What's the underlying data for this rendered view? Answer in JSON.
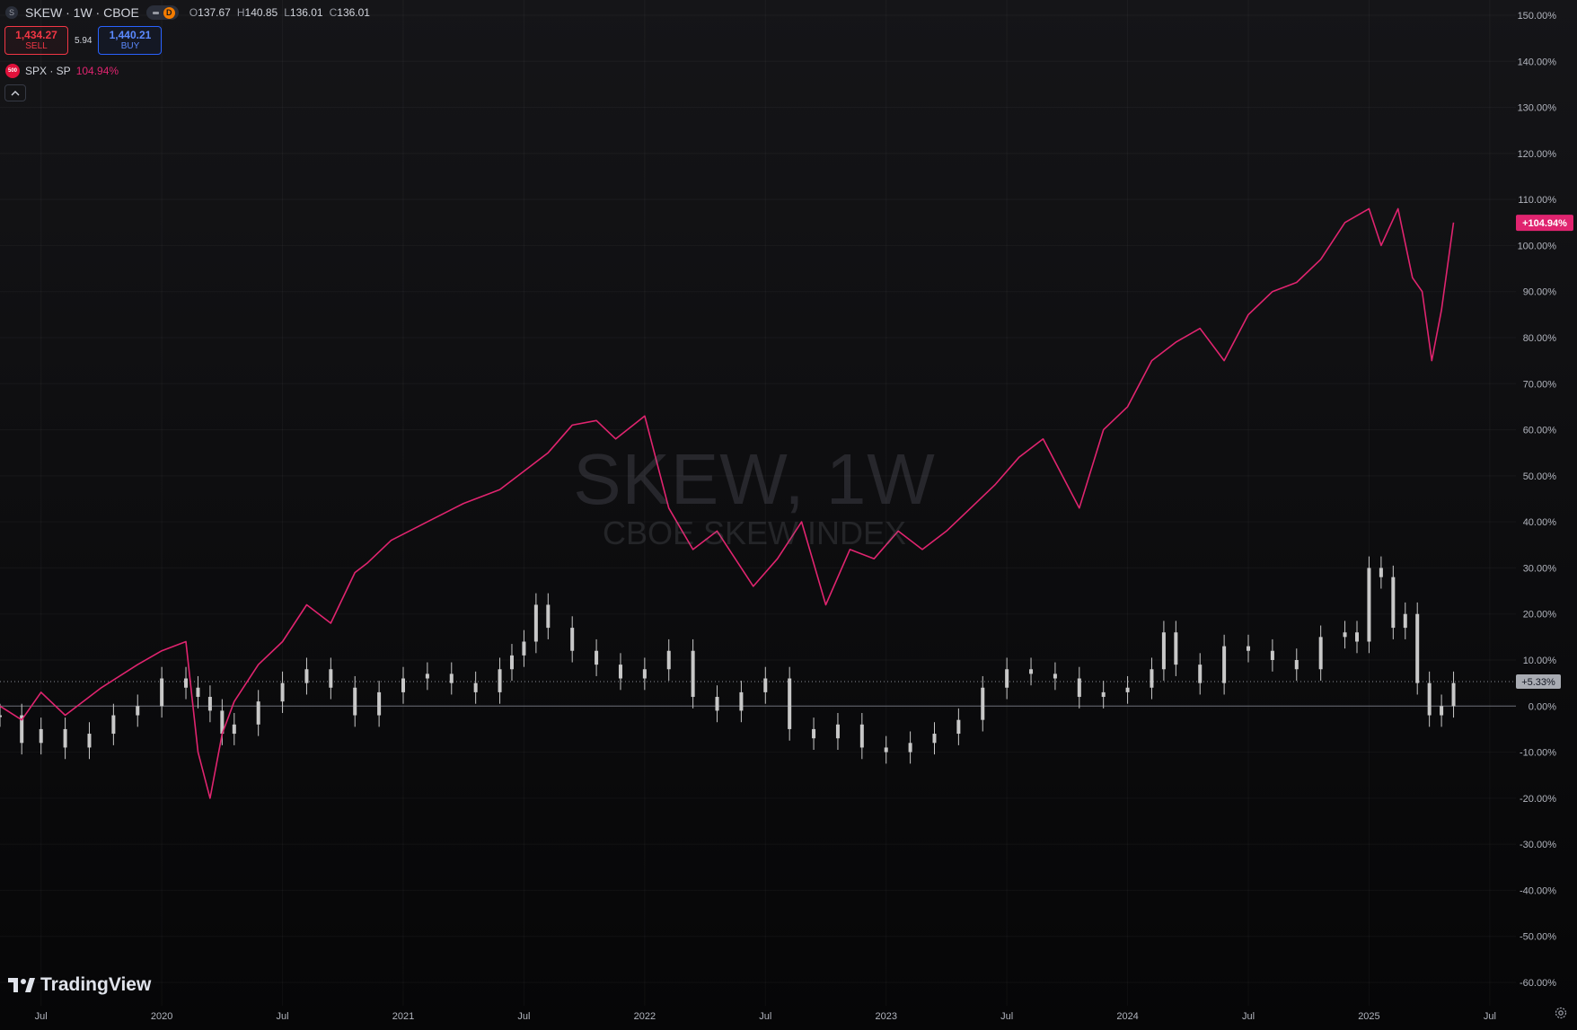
{
  "header": {
    "symbol_logo": "S",
    "title": "SKEW · 1W · CBOE",
    "toggle_badge": "D",
    "ohlc": {
      "open": "137.67",
      "high": "140.85",
      "low": "136.01",
      "close": "136.01"
    },
    "ohlc_labels": {
      "open": "O",
      "high": "H",
      "low": "L",
      "close": "C"
    }
  },
  "trade": {
    "sell_price": "1,434.27",
    "sell_label": "SELL",
    "spread": "5.94",
    "buy_price": "1,440.21",
    "buy_label": "BUY"
  },
  "compare": {
    "logo_text": "500",
    "label": "SPX · SP",
    "value": "104.94%",
    "color": "#e0246f"
  },
  "watermark": {
    "title": "SKEW, 1W",
    "subtitle": "CBOE SKEW INDEX"
  },
  "branding": {
    "name": "TradingView"
  },
  "icons": {
    "collapse": "chevron-up-icon",
    "settings": "gear-icon",
    "logo": "tradingview-logo-icon"
  },
  "colors": {
    "spx_line": "#e0246f",
    "candle_body": "#c8c8c8",
    "background": "#0e0e10",
    "axis_text": "#b2b5be"
  },
  "chart_data": {
    "type": "line",
    "y_axis": {
      "unit": "%",
      "range": [
        -62,
        154
      ],
      "ticks": [
        "150.00%",
        "140.00%",
        "130.00%",
        "120.00%",
        "110.00%",
        "100.00%",
        "90.00%",
        "80.00%",
        "70.00%",
        "60.00%",
        "50.00%",
        "40.00%",
        "30.00%",
        "20.00%",
        "10.00%",
        "0.00%",
        "-10.00%",
        "-20.00%",
        "-30.00%",
        "-40.00%",
        "-50.00%",
        "-60.00%"
      ],
      "tick_values": [
        150,
        140,
        130,
        120,
        110,
        100,
        90,
        80,
        70,
        60,
        50,
        40,
        30,
        20,
        10,
        0,
        -10,
        -20,
        -30,
        -40,
        -50,
        -60
      ]
    },
    "x_axis": {
      "range": [
        2019.33,
        2025.56
      ],
      "ticks": [
        {
          "label": "Jul",
          "t": 2019.5
        },
        {
          "label": "2020",
          "t": 2020.0
        },
        {
          "label": "Jul",
          "t": 2020.5
        },
        {
          "label": "2021",
          "t": 2021.0
        },
        {
          "label": "Jul",
          "t": 2021.5
        },
        {
          "label": "2022",
          "t": 2022.0
        },
        {
          "label": "Jul",
          "t": 2022.5
        },
        {
          "label": "2023",
          "t": 2023.0
        },
        {
          "label": "Jul",
          "t": 2023.5
        },
        {
          "label": "2024",
          "t": 2024.0
        },
        {
          "label": "Jul",
          "t": 2024.5
        },
        {
          "label": "2025",
          "t": 2025.0
        },
        {
          "label": "Jul",
          "t": 2025.5
        }
      ]
    },
    "series": [
      {
        "name": "SPX · SP",
        "type": "line",
        "color": "#e0246f",
        "last_label": "+104.94%",
        "t": [
          2019.33,
          2019.42,
          2019.5,
          2019.6,
          2019.75,
          2019.9,
          2020.0,
          2020.1,
          2020.15,
          2020.2,
          2020.25,
          2020.3,
          2020.4,
          2020.5,
          2020.6,
          2020.7,
          2020.8,
          2020.85,
          2020.95,
          2021.1,
          2021.25,
          2021.4,
          2021.5,
          2021.6,
          2021.7,
          2021.8,
          2021.88,
          2022.0,
          2022.1,
          2022.2,
          2022.3,
          2022.45,
          2022.55,
          2022.65,
          2022.75,
          2022.85,
          2022.95,
          2023.05,
          2023.15,
          2023.25,
          2023.35,
          2023.45,
          2023.55,
          2023.65,
          2023.8,
          2023.9,
          2024.0,
          2024.1,
          2024.2,
          2024.3,
          2024.4,
          2024.5,
          2024.6,
          2024.7,
          2024.8,
          2024.9,
          2025.0,
          2025.05,
          2025.12,
          2025.18,
          2025.22,
          2025.26,
          2025.3,
          2025.35
        ],
        "values": [
          0,
          -3,
          3,
          -2,
          4,
          9,
          12,
          14,
          -10,
          -20,
          -6,
          1,
          9,
          14,
          22,
          18,
          29,
          31,
          36,
          40,
          44,
          47,
          51,
          55,
          61,
          62,
          58,
          63,
          43,
          34,
          38,
          26,
          32,
          40,
          22,
          34,
          32,
          38,
          34,
          38,
          43,
          48,
          54,
          58,
          43,
          60,
          65,
          75,
          79,
          82,
          75,
          85,
          90,
          92,
          97,
          105,
          108,
          100,
          108,
          93,
          90,
          75,
          86,
          105
        ]
      },
      {
        "name": "SKEW",
        "type": "candlestick",
        "color": "#c8c8c8",
        "last_label": "+5.33%",
        "t": [
          2019.33,
          2019.42,
          2019.5,
          2019.6,
          2019.7,
          2019.8,
          2019.9,
          2020.0,
          2020.1,
          2020.15,
          2020.2,
          2020.25,
          2020.3,
          2020.4,
          2020.5,
          2020.6,
          2020.7,
          2020.8,
          2020.9,
          2021.0,
          2021.1,
          2021.2,
          2021.3,
          2021.4,
          2021.45,
          2021.5,
          2021.55,
          2021.6,
          2021.7,
          2021.8,
          2021.9,
          2022.0,
          2022.1,
          2022.2,
          2022.3,
          2022.4,
          2022.5,
          2022.6,
          2022.7,
          2022.8,
          2022.9,
          2023.0,
          2023.1,
          2023.2,
          2023.3,
          2023.4,
          2023.5,
          2023.6,
          2023.7,
          2023.8,
          2023.9,
          2024.0,
          2024.1,
          2024.15,
          2024.2,
          2024.3,
          2024.4,
          2024.5,
          2024.6,
          2024.7,
          2024.8,
          2024.9,
          2024.95,
          2025.0,
          2025.05,
          2025.1,
          2025.15,
          2025.2,
          2025.25,
          2025.3,
          2025.35
        ],
        "values": [
          -2,
          -8,
          -5,
          -9,
          -6,
          -2,
          0,
          6,
          4,
          2,
          -1,
          -6,
          -4,
          1,
          5,
          8,
          4,
          -2,
          3,
          6,
          7,
          5,
          3,
          8,
          11,
          14,
          22,
          17,
          12,
          9,
          6,
          8,
          12,
          2,
          -1,
          3,
          6,
          -5,
          -7,
          -4,
          -9,
          -10,
          -8,
          -6,
          -3,
          4,
          8,
          7,
          6,
          2,
          3,
          4,
          8,
          16,
          9,
          5,
          13,
          12,
          10,
          8,
          15,
          16,
          14,
          30,
          28,
          17,
          20,
          5,
          -2,
          0,
          5
        ]
      }
    ]
  }
}
